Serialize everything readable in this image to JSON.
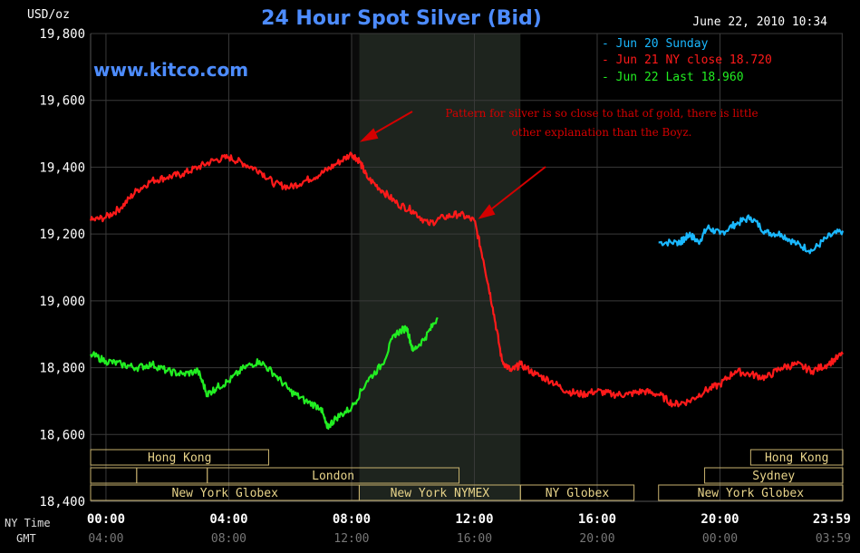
{
  "header": {
    "unit_label": "USD/oz",
    "title": "24 Hour Spot Silver (Bid)",
    "timestamp": "June 22, 2010 10:34",
    "watermark": "www.kitco.com"
  },
  "legend": [
    {
      "label": "- Jun 20 Sunday",
      "color": "#1ab8ff"
    },
    {
      "label": "- Jun 21 NY close 18.720",
      "color": "#ff1a1a"
    },
    {
      "label": "- Jun 22 Last 18.960",
      "color": "#22ee22"
    }
  ],
  "annotation": {
    "line1": "Pattern for silver is so close to that of gold, there is little",
    "line2": "other explanation than the Boyz."
  },
  "sessions": {
    "row1": [
      {
        "label": "Hong Kong",
        "x0": -0.5,
        "x1": 5.3
      },
      {
        "label": "Hong Kong",
        "x0": 21.0,
        "x1": 24.0
      }
    ],
    "row2": [
      {
        "label": "",
        "x0": -0.5,
        "x1": 1.0
      },
      {
        "label": "",
        "x0": 1.0,
        "x1": 3.3
      },
      {
        "label": "London",
        "x0": 3.3,
        "x1": 11.5
      },
      {
        "label": "Sydney",
        "x0": 19.5,
        "x1": 24.0
      }
    ],
    "row3": [
      {
        "label": "New York Globex",
        "x0": -0.5,
        "x1": 8.25
      },
      {
        "label": "New York NYMEX",
        "x0": 8.25,
        "x1": 13.5
      },
      {
        "label": "NY Globex",
        "x0": 13.5,
        "x1": 17.2
      },
      {
        "label": "New York Globex",
        "x0": 18.0,
        "x1": 24.0
      }
    ]
  },
  "axis_labels": {
    "ny_time": "NY Time",
    "gmt": "GMT"
  },
  "chart_data": {
    "type": "line",
    "title": "24 Hour Spot Silver (Bid)",
    "ylabel": "USD/oz",
    "ylim": [
      18.4,
      19.8
    ],
    "yticks": [
      "19,800",
      "19,600",
      "19,400",
      "19,200",
      "19,000",
      "18,800",
      "18,600",
      "18,400"
    ],
    "ytick_values": [
      19.8,
      19.6,
      19.4,
      19.2,
      19.0,
      18.8,
      18.6,
      18.4
    ],
    "xlim": [
      -0.5,
      24.0
    ],
    "xticks_ny": [
      "00:00",
      "04:00",
      "08:00",
      "12:00",
      "16:00",
      "20:00",
      "23:59"
    ],
    "xticks_gmt": [
      "04:00",
      "08:00",
      "12:00",
      "16:00",
      "20:00",
      "00:00",
      "03:59"
    ],
    "xtick_values": [
      0,
      4,
      8,
      12,
      16,
      20,
      23.98
    ],
    "highlight_band": [
      8.25,
      13.5
    ],
    "grid": true,
    "series": [
      {
        "name": "Jun 20 Sunday",
        "color": "#1ab8ff",
        "x": [
          18.0,
          18.6,
          18.8,
          19.0,
          19.3,
          19.6,
          20.0,
          20.5,
          21.0,
          21.5,
          22.0,
          22.5,
          23.0,
          23.5,
          24.0
        ],
        "y": [
          19.175,
          19.175,
          19.18,
          19.2,
          19.175,
          19.22,
          19.2,
          19.23,
          19.25,
          19.205,
          19.2,
          19.17,
          19.15,
          19.19,
          19.21
        ]
      },
      {
        "name": "Jun 21 NY close 18.720",
        "color": "#ff1a1a",
        "x": [
          -0.5,
          0.0,
          0.5,
          1.0,
          1.5,
          2.0,
          2.5,
          3.0,
          3.5,
          4.0,
          4.5,
          5.0,
          5.5,
          6.0,
          6.5,
          7.0,
          7.5,
          8.0,
          8.25,
          8.5,
          9.0,
          9.5,
          10.0,
          10.5,
          11.0,
          11.5,
          12.0,
          12.3,
          12.6,
          12.9,
          13.2,
          13.5,
          14.0,
          14.5,
          15.0,
          15.5,
          16.0,
          16.5,
          17.0,
          17.5,
          18.0,
          18.5,
          19.0,
          19.5,
          20.0,
          20.5,
          21.0,
          21.5,
          22.0,
          22.5,
          23.0,
          23.5,
          24.0
        ],
        "y": [
          19.24,
          19.25,
          19.28,
          19.33,
          19.36,
          19.37,
          19.38,
          19.4,
          19.42,
          19.43,
          19.41,
          19.39,
          19.35,
          19.34,
          19.36,
          19.38,
          19.41,
          19.44,
          19.42,
          19.37,
          19.33,
          19.29,
          19.27,
          19.23,
          19.25,
          19.26,
          19.24,
          19.12,
          18.98,
          18.82,
          18.79,
          18.81,
          18.78,
          18.76,
          18.73,
          18.72,
          18.73,
          18.72,
          18.72,
          18.73,
          18.72,
          18.69,
          18.7,
          18.73,
          18.75,
          18.79,
          18.78,
          18.77,
          18.8,
          18.81,
          18.79,
          18.81,
          18.84
        ]
      },
      {
        "name": "Jun 22 Last 18.960",
        "color": "#22ee22",
        "x": [
          -0.5,
          0.0,
          0.5,
          1.0,
          1.5,
          2.0,
          2.5,
          3.0,
          3.3,
          3.6,
          4.0,
          4.5,
          5.0,
          5.5,
          6.0,
          6.5,
          7.0,
          7.2,
          7.5,
          8.0,
          8.5,
          9.0,
          9.4,
          9.8,
          10.0,
          10.4,
          10.8
        ],
        "y": [
          18.84,
          18.82,
          18.81,
          18.8,
          18.81,
          18.79,
          18.78,
          18.79,
          18.72,
          18.74,
          18.76,
          18.8,
          18.82,
          18.78,
          18.73,
          18.7,
          18.68,
          18.62,
          18.65,
          18.68,
          18.76,
          18.81,
          18.9,
          18.92,
          18.85,
          18.89,
          18.95
        ]
      }
    ]
  }
}
